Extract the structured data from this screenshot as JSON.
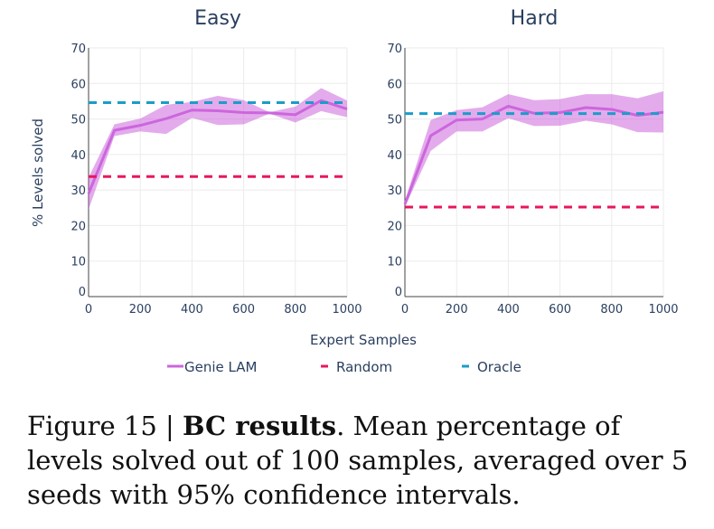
{
  "chart_data": [
    {
      "type": "line",
      "title": "Easy",
      "xlabel": "Expert Samples",
      "ylabel": "% Levels solved",
      "xlim": [
        0,
        1000
      ],
      "ylim": [
        0,
        70
      ],
      "x_ticks": [
        "0",
        "200",
        "400",
        "600",
        "800",
        "1000"
      ],
      "y_ticks": [
        "0",
        "10",
        "20",
        "30",
        "40",
        "50",
        "60",
        "70"
      ],
      "grid": true,
      "series": [
        {
          "name": "Genie LAM",
          "style": "solid",
          "color": "#cc66dd",
          "x": [
            0,
            100,
            200,
            300,
            400,
            500,
            600,
            700,
            800,
            900,
            1000
          ],
          "values": [
            29,
            46.8,
            48.2,
            50.1,
            52.5,
            52.3,
            51.8,
            51.7,
            51.2,
            55.2,
            52.8
          ],
          "ci_low": [
            24.5,
            45.2,
            46.5,
            45.8,
            50.3,
            48.3,
            48.5,
            51.5,
            49.0,
            52.2,
            50.5
          ],
          "ci_high": [
            33.5,
            48.5,
            50.1,
            54.0,
            54.8,
            56.5,
            55.3,
            51.9,
            53.5,
            58.7,
            55.2
          ]
        },
        {
          "name": "Random",
          "style": "dashed",
          "color": "#e8175d",
          "value": 33.8
        },
        {
          "name": "Oracle",
          "style": "dashed",
          "color": "#1a9dc9",
          "value": 54.6
        }
      ]
    },
    {
      "type": "line",
      "title": "Hard",
      "xlabel": "Expert Samples",
      "ylabel": "",
      "xlim": [
        0,
        1000
      ],
      "ylim": [
        0,
        70
      ],
      "x_ticks": [
        "0",
        "200",
        "400",
        "600",
        "800",
        "1000"
      ],
      "y_ticks": [
        "0",
        "10",
        "20",
        "30",
        "40",
        "50",
        "60",
        "70"
      ],
      "grid": true,
      "series": [
        {
          "name": "Genie LAM",
          "style": "solid",
          "color": "#cc66dd",
          "x": [
            0,
            100,
            200,
            300,
            400,
            500,
            600,
            700,
            800,
            900,
            1000
          ],
          "values": [
            26,
            45.3,
            49.7,
            50.0,
            53.6,
            51.6,
            51.8,
            53.2,
            52.7,
            51.0,
            51.9
          ],
          "ci_low": [
            25.2,
            41.0,
            46.5,
            46.5,
            50.2,
            48.0,
            48.1,
            49.5,
            48.5,
            46.3,
            46.2
          ],
          "ci_high": [
            27.0,
            49.7,
            52.5,
            53.3,
            57.0,
            55.3,
            55.6,
            57.0,
            57.0,
            55.8,
            57.8
          ]
        },
        {
          "name": "Random",
          "style": "dashed",
          "color": "#e8175d",
          "value": 25.2
        },
        {
          "name": "Oracle",
          "style": "dashed",
          "color": "#1a9dc9",
          "value": 51.5
        }
      ]
    }
  ],
  "legend": {
    "placement": "bottom-center",
    "items": [
      {
        "label": "Genie LAM",
        "color": "#cc66dd"
      },
      {
        "label": "Random",
        "color": "#e8175d"
      },
      {
        "label": "Oracle",
        "color": "#1a9dc9"
      }
    ]
  },
  "caption": {
    "prefix": "Figure 15 | ",
    "bold": "BC results",
    "text": ". Mean percentage of levels solved out of 100 samples, averaged over 5 seeds with 95% confidence intervals."
  }
}
